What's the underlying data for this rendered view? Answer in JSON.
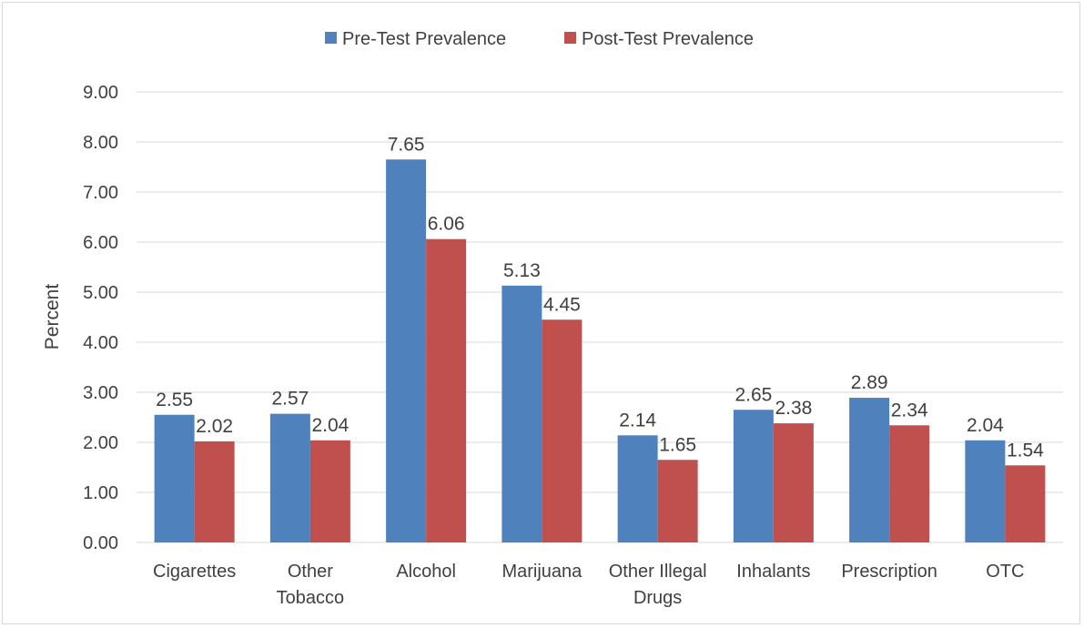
{
  "chart_data": {
    "type": "bar",
    "title": "",
    "xlabel": "",
    "ylabel": "Percent",
    "ylim": [
      0,
      9
    ],
    "ytick_step": 1,
    "ytick_labels": [
      "0.00",
      "1.00",
      "2.00",
      "3.00",
      "4.00",
      "5.00",
      "6.00",
      "7.00",
      "8.00",
      "9.00"
    ],
    "grid": true,
    "legend_position": "top",
    "categories": [
      [
        "Cigarettes"
      ],
      [
        "Other",
        "Tobacco"
      ],
      [
        "Alcohol"
      ],
      [
        "Marijuana"
      ],
      [
        "Other Illegal",
        "Drugs"
      ],
      [
        "Inhalants"
      ],
      [
        "Prescription"
      ],
      [
        "OTC"
      ]
    ],
    "series": [
      {
        "name": "Pre-Test Prevalence",
        "color": "#4f81bd",
        "values": [
          2.55,
          2.57,
          7.65,
          5.13,
          2.14,
          2.65,
          2.89,
          2.04
        ],
        "labels": [
          "2.55",
          "2.57",
          "7.65",
          "5.13",
          "2.14",
          "2.65",
          "2.89",
          "2.04"
        ]
      },
      {
        "name": "Post-Test Prevalence",
        "color": "#c0504d",
        "values": [
          2.02,
          2.04,
          6.06,
          4.45,
          1.65,
          2.38,
          2.34,
          1.54
        ],
        "labels": [
          "2.02",
          "2.04",
          "6.06",
          "4.45",
          "1.65",
          "2.38",
          "2.34",
          "1.54"
        ]
      }
    ],
    "colors": {
      "gridline": "#d9d9d9",
      "text": "#404040"
    }
  }
}
